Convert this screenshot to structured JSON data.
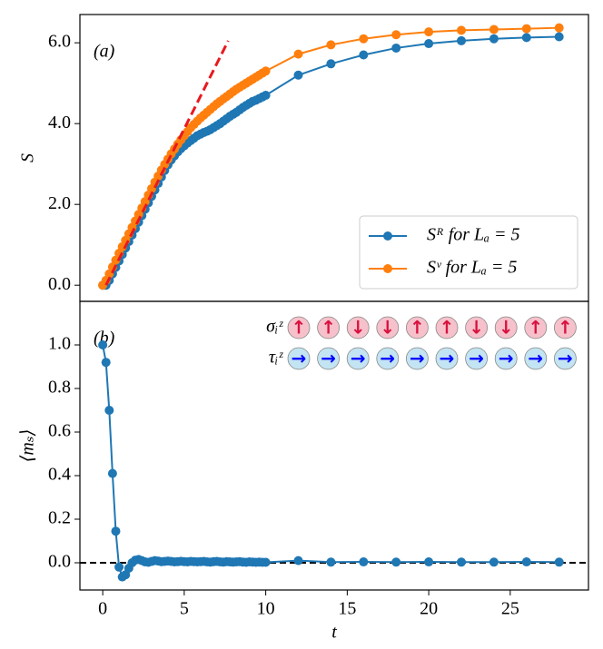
{
  "chart_data": [
    {
      "type": "line",
      "panel_label": "(a)",
      "ylabel": "S",
      "xlim": [
        -1.4,
        29.8
      ],
      "ylim": [
        -0.4,
        6.7
      ],
      "yticks": [
        {
          "value": 0,
          "label": "0.0"
        },
        {
          "value": 2,
          "label": "2.0"
        },
        {
          "value": 4,
          "label": "4.0"
        },
        {
          "value": 6,
          "label": "6.0"
        }
      ],
      "legend": "lower right",
      "x": [
        0,
        0.2,
        0.4,
        0.6,
        0.8,
        1,
        1.2,
        1.4,
        1.6,
        1.8,
        2,
        2.2,
        2.4,
        2.6,
        2.8,
        3,
        3.2,
        3.4,
        3.6,
        3.8,
        4,
        4.2,
        4.4,
        4.6,
        4.8,
        5,
        5.2,
        5.4,
        5.6,
        5.8,
        6,
        6.2,
        6.4,
        6.6,
        6.8,
        7,
        7.2,
        7.4,
        7.6,
        7.8,
        8,
        8.2,
        8.4,
        8.6,
        8.8,
        9,
        9.2,
        9.4,
        9.6,
        9.8,
        10,
        12,
        14,
        16,
        18,
        20,
        22,
        24,
        26,
        28
      ],
      "series": [
        {
          "name": "Sᴿ for Lₐ = 5",
          "color": "#1f77b4",
          "values": [
            0,
            0,
            0.12,
            0.28,
            0.44,
            0.6,
            0.76,
            0.92,
            1.08,
            1.24,
            1.4,
            1.56,
            1.72,
            1.88,
            2.04,
            2.2,
            2.36,
            2.52,
            2.68,
            2.84,
            2.98,
            3.1,
            3.2,
            3.3,
            3.38,
            3.45,
            3.52,
            3.58,
            3.64,
            3.7,
            3.74,
            3.78,
            3.81,
            3.85,
            3.9,
            3.95,
            4.0,
            4.06,
            4.12,
            4.18,
            4.23,
            4.28,
            4.34,
            4.4,
            4.45,
            4.5,
            4.55,
            4.58,
            4.62,
            4.66,
            4.7,
            5.2,
            5.48,
            5.7,
            5.87,
            5.98,
            6.05,
            6.1,
            6.13,
            6.15
          ]
        },
        {
          "name": "Sᵛ for Lₐ = 5",
          "color": "#ff7f0e",
          "values": [
            0,
            0.12,
            0.28,
            0.45,
            0.62,
            0.79,
            0.95,
            1.11,
            1.27,
            1.43,
            1.59,
            1.75,
            1.91,
            2.07,
            2.23,
            2.39,
            2.55,
            2.7,
            2.85,
            2.99,
            3.12,
            3.25,
            3.37,
            3.49,
            3.6,
            3.7,
            3.8,
            3.9,
            3.98,
            4.06,
            4.14,
            4.21,
            4.28,
            4.35,
            4.42,
            4.49,
            4.55,
            4.61,
            4.67,
            4.73,
            4.79,
            4.85,
            4.9,
            4.95,
            5.0,
            5.05,
            5.1,
            5.15,
            5.2,
            5.25,
            5.3,
            5.72,
            5.95,
            6.1,
            6.2,
            6.27,
            6.31,
            6.33,
            6.35,
            6.37
          ]
        }
      ],
      "fit_line": {
        "x": [
          0.2,
          7.7
        ],
        "values": [
          0,
          6.05
        ],
        "color": "#e8191e"
      }
    },
    {
      "type": "line",
      "panel_label": "(b)",
      "ylabel": "⟨mₛ⟩",
      "xlabel": "t",
      "xlim": [
        -1.4,
        29.8
      ],
      "ylim": [
        -0.125,
        1.2
      ],
      "xticks": [
        0,
        5,
        10,
        15,
        20,
        25
      ],
      "yticks": [
        {
          "value": 0,
          "label": "0.0"
        },
        {
          "value": 0.2,
          "label": "0.2"
        },
        {
          "value": 0.4,
          "label": "0.4"
        },
        {
          "value": 0.6,
          "label": "0.6"
        },
        {
          "value": 0.8,
          "label": "0.8"
        },
        {
          "value": 1,
          "label": "1.0"
        }
      ],
      "hline": 0,
      "x": [
        0,
        0.2,
        0.4,
        0.6,
        0.8,
        1,
        1.2,
        1.4,
        1.6,
        1.8,
        2,
        2.2,
        2.4,
        2.6,
        2.8,
        3,
        3.2,
        3.4,
        3.6,
        3.8,
        4,
        4.2,
        4.4,
        4.6,
        4.8,
        5,
        5.2,
        5.4,
        5.6,
        5.8,
        6,
        6.2,
        6.4,
        6.6,
        6.8,
        7,
        7.2,
        7.4,
        7.6,
        7.8,
        8,
        8.2,
        8.4,
        8.6,
        8.8,
        9,
        9.2,
        9.4,
        9.6,
        9.8,
        10,
        12,
        14,
        16,
        18,
        20,
        22,
        24,
        26,
        28
      ],
      "series": [
        {
          "color": "#1f77b4",
          "values": [
            1.0,
            0.92,
            0.7,
            0.41,
            0.145,
            -0.02,
            -0.065,
            -0.055,
            -0.025,
            0,
            0.012,
            0.015,
            0.01,
            0.004,
            0.002,
            0.006,
            0.01,
            0.008,
            0.005,
            0.006,
            0.008,
            0.006,
            0.004,
            0.005,
            0.007,
            0.005,
            0.004,
            0.006,
            0.005,
            0.004,
            0.005,
            0.006,
            0.004,
            0.003,
            0.005,
            0.006,
            0.004,
            0.003,
            0.005,
            0.004,
            0.003,
            0.004,
            0.005,
            0.003,
            0.002,
            0.004,
            0.003,
            0.002,
            0.003,
            0.002,
            0.002,
            0.01,
            0.003,
            0.004,
            0.003,
            0.004,
            0.003,
            0.003,
            0.004,
            0.003
          ]
        }
      ],
      "spins": {
        "sigma_label": "σᵢᶻ",
        "tau_label": "τᵢᶻ",
        "sigma": [
          "↑",
          "↑",
          "↓",
          "↓",
          "↑",
          "↑",
          "↓",
          "↓",
          "↑",
          "↑"
        ],
        "tau": [
          "→",
          "→",
          "→",
          "→",
          "→",
          "→",
          "→",
          "→",
          "→",
          "→"
        ]
      }
    }
  ]
}
